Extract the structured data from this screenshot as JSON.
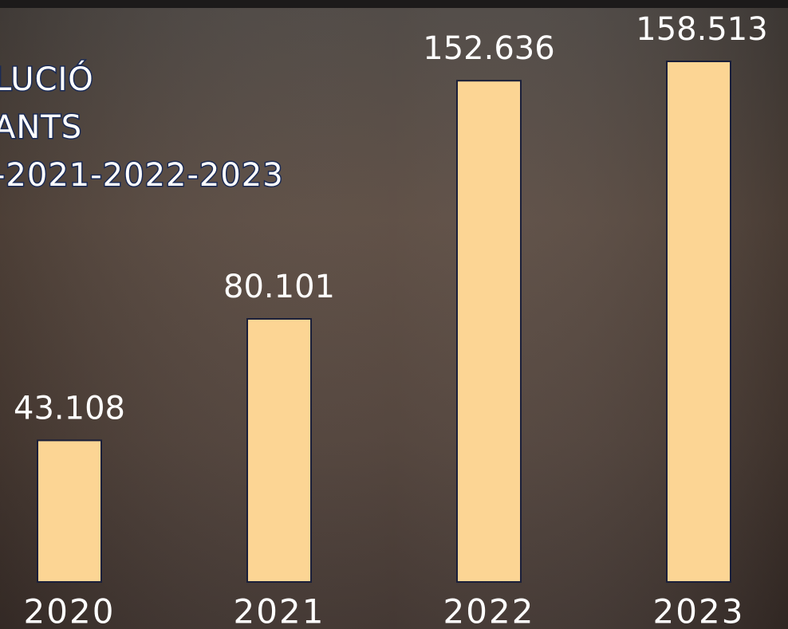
{
  "chart_data": {
    "type": "bar",
    "title": [
      "LUCIÓ",
      "ANTS",
      "-2021-2022-2023"
    ],
    "categories": [
      "2020",
      "2021",
      "2022",
      "2023"
    ],
    "values": [
      43108,
      80101,
      152636,
      158513
    ],
    "value_labels": [
      "43.108",
      "80.101",
      "152.636",
      "158.513"
    ],
    "color": "#fcd594"
  }
}
